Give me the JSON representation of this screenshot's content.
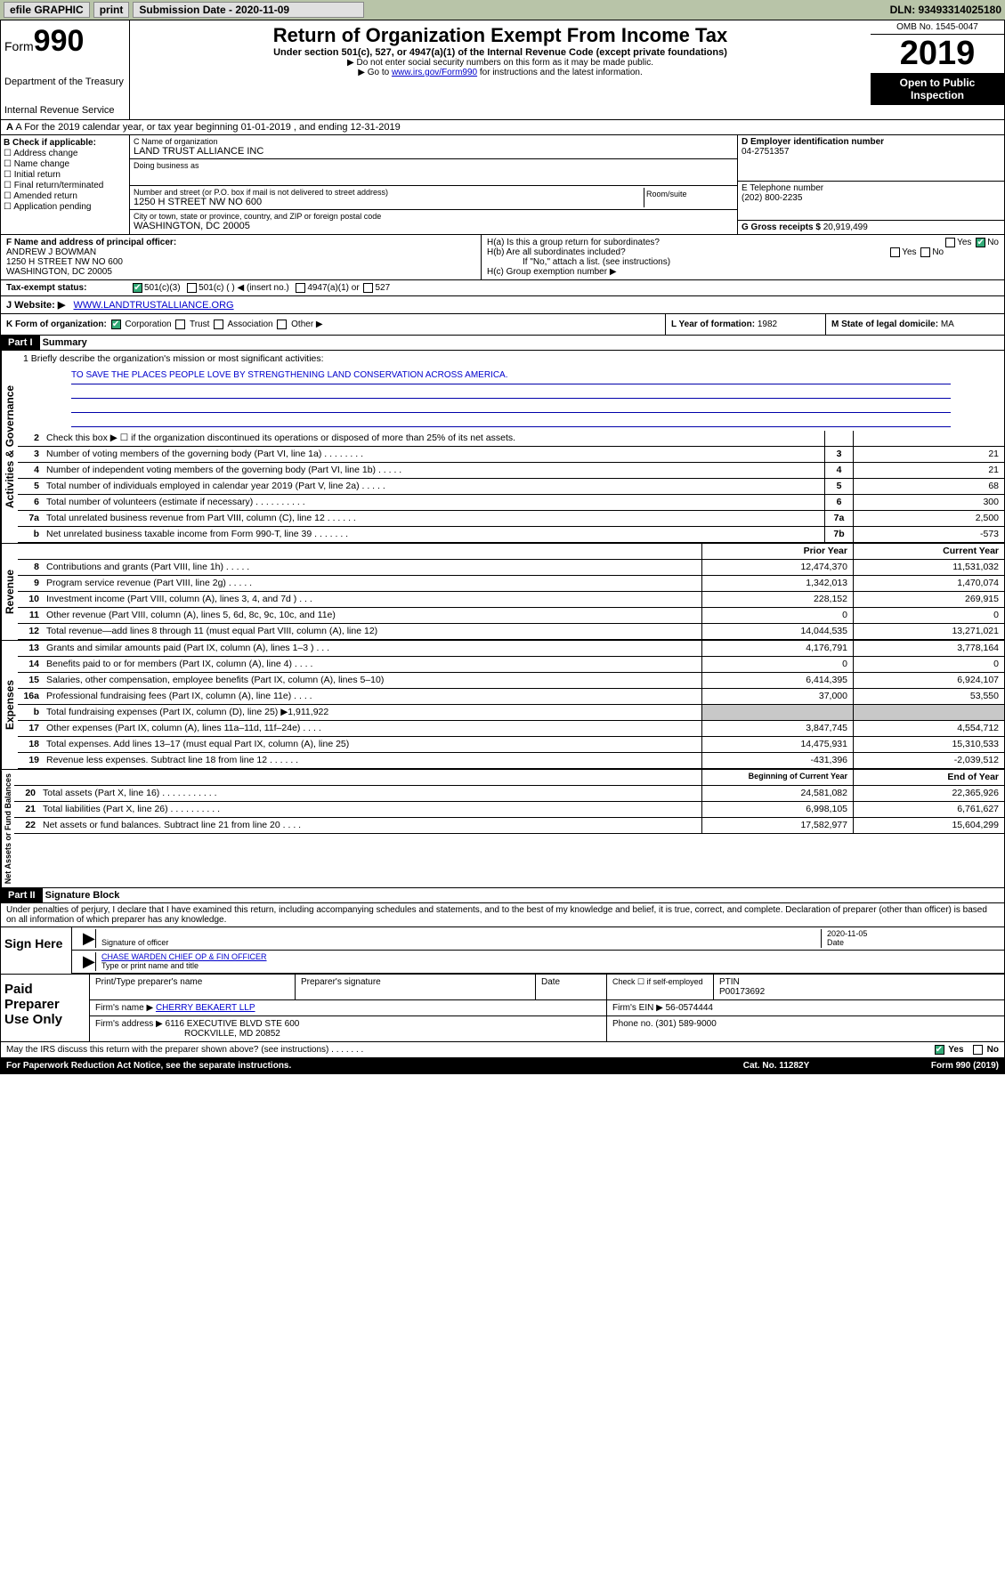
{
  "topbar": {
    "efile": "efile GRAPHIC",
    "print": "print",
    "subdate_lbl": "Submission Date - 2020-11-09",
    "dln": "DLN: 93493314025180"
  },
  "header": {
    "form": "Form",
    "num": "990",
    "dept": "Department of the Treasury",
    "irs": "Internal Revenue Service",
    "title": "Return of Organization Exempt From Income Tax",
    "sub": "Under section 501(c), 527, or 4947(a)(1) of the Internal Revenue Code (except private foundations)",
    "warn": "▶ Do not enter social security numbers on this form as it may be made public.",
    "goto": "▶ Go to www.irs.gov/Form990 for instructions and the latest information.",
    "goto_link": "www.irs.gov/Form990",
    "omb": "OMB No. 1545-0047",
    "year": "2019",
    "open": "Open to Public Inspection"
  },
  "rowa": "A For the 2019 calendar year, or tax year beginning 01-01-2019   , and ending 12-31-2019",
  "boxb": {
    "hdr": "B Check if applicable:",
    "opts": [
      "Address change",
      "Name change",
      "Initial return",
      "Final return/terminated",
      "Amended return",
      "Application pending"
    ]
  },
  "boxc": {
    "name_lbl": "C Name of organization",
    "name": "LAND TRUST ALLIANCE INC",
    "dba_lbl": "Doing business as",
    "dba": "",
    "street_lbl": "Number and street (or P.O. box if mail is not delivered to street address)",
    "room_lbl": "Room/suite",
    "street": "1250 H STREET NW NO 600",
    "city_lbl": "City or town, state or province, country, and ZIP or foreign postal code",
    "city": "WASHINGTON, DC  20005"
  },
  "boxd": {
    "lbl": "D Employer identification number",
    "val": "04-2751357"
  },
  "boxe": {
    "lbl": "E Telephone number",
    "val": "(202) 800-2235"
  },
  "boxg": {
    "lbl": "G Gross receipts $",
    "val": "20,919,499"
  },
  "boxf": {
    "lbl": "F  Name and address of principal officer:",
    "name": "ANDREW J BOWMAN",
    "addr1": "1250 H STREET NW NO 600",
    "addr2": "WASHINGTON, DC  20005"
  },
  "boxh": {
    "a": "H(a)  Is this a group return for subordinates?",
    "b": "H(b)  Are all subordinates included?",
    "bnote": "If \"No,\" attach a list. (see instructions)",
    "c": "H(c)  Group exemption number ▶"
  },
  "rowi": {
    "lbl": "Tax-exempt status:",
    "opts": [
      "501(c)(3)",
      "501(c) (  ) ◀ (insert no.)",
      "4947(a)(1) or",
      "527"
    ]
  },
  "rowj": {
    "lbl": "J   Website: ▶",
    "val": "WWW.LANDTRUSTALLIANCE.ORG"
  },
  "rowk": "K Form of organization:",
  "rowk_opts": [
    "Corporation",
    "Trust",
    "Association",
    "Other ▶"
  ],
  "rowl": {
    "lbl": "L Year of formation:",
    "val": "1982"
  },
  "rowm": {
    "lbl": "M State of legal domicile:",
    "val": "MA"
  },
  "part1": {
    "hdr": "Part I",
    "title": "Summary"
  },
  "mission": {
    "lbl": "1   Briefly describe the organization's mission or most significant activities:",
    "text": "TO SAVE THE PLACES PEOPLE LOVE BY STRENGTHENING LAND CONSERVATION ACROSS AMERICA."
  },
  "lines_gov": [
    {
      "n": "2",
      "d": "Check this box ▶ ☐ if the organization discontinued its operations or disposed of more than 25% of its net assets.",
      "box": "",
      "v": ""
    },
    {
      "n": "3",
      "d": "Number of voting members of the governing body (Part VI, line 1a)   .   .   .   .   .   .   .   .",
      "box": "3",
      "v": "21"
    },
    {
      "n": "4",
      "d": "Number of independent voting members of the governing body (Part VI, line 1b)   .   .   .   .   .",
      "box": "4",
      "v": "21"
    },
    {
      "n": "5",
      "d": "Total number of individuals employed in calendar year 2019 (Part V, line 2a)   .   .   .   .   .",
      "box": "5",
      "v": "68"
    },
    {
      "n": "6",
      "d": "Total number of volunteers (estimate if necessary)   .   .   .   .   .   .   .   .   .   .",
      "box": "6",
      "v": "300"
    },
    {
      "n": "7a",
      "d": "Total unrelated business revenue from Part VIII, column (C), line 12   .   .   .   .   .   .",
      "box": "7a",
      "v": "2,500"
    },
    {
      "n": "b",
      "d": "Net unrelated business taxable income from Form 990-T, line 39   .   .   .   .   .   .   .",
      "box": "7b",
      "v": "-573"
    }
  ],
  "col_hdrs": {
    "prior": "Prior Year",
    "current": "Current Year"
  },
  "lines_rev": [
    {
      "n": "8",
      "d": "Contributions and grants (Part VIII, line 1h)   .   .   .   .   .",
      "p": "12,474,370",
      "c": "11,531,032"
    },
    {
      "n": "9",
      "d": "Program service revenue (Part VIII, line 2g)   .   .   .   .   .",
      "p": "1,342,013",
      "c": "1,470,074"
    },
    {
      "n": "10",
      "d": "Investment income (Part VIII, column (A), lines 3, 4, and 7d )   .   .   .",
      "p": "228,152",
      "c": "269,915"
    },
    {
      "n": "11",
      "d": "Other revenue (Part VIII, column (A), lines 5, 6d, 8c, 9c, 10c, and 11e)",
      "p": "0",
      "c": "0"
    },
    {
      "n": "12",
      "d": "Total revenue—add lines 8 through 11 (must equal Part VIII, column (A), line 12)",
      "p": "14,044,535",
      "c": "13,271,021"
    }
  ],
  "lines_exp": [
    {
      "n": "13",
      "d": "Grants and similar amounts paid (Part IX, column (A), lines 1–3 )   .   .   .",
      "p": "4,176,791",
      "c": "3,778,164"
    },
    {
      "n": "14",
      "d": "Benefits paid to or for members (Part IX, column (A), line 4)   .   .   .   .",
      "p": "0",
      "c": "0"
    },
    {
      "n": "15",
      "d": "Salaries, other compensation, employee benefits (Part IX, column (A), lines 5–10)",
      "p": "6,414,395",
      "c": "6,924,107"
    },
    {
      "n": "16a",
      "d": "Professional fundraising fees (Part IX, column (A), line 11e)   .   .   .   .",
      "p": "37,000",
      "c": "53,550"
    },
    {
      "n": "b",
      "d": "Total fundraising expenses (Part IX, column (D), line 25) ▶1,911,922",
      "p": "",
      "c": "",
      "shaded": true
    },
    {
      "n": "17",
      "d": "Other expenses (Part IX, column (A), lines 11a–11d, 11f–24e)   .   .   .   .",
      "p": "3,847,745",
      "c": "4,554,712"
    },
    {
      "n": "18",
      "d": "Total expenses. Add lines 13–17 (must equal Part IX, column (A), line 25)",
      "p": "14,475,931",
      "c": "15,310,533"
    },
    {
      "n": "19",
      "d": "Revenue less expenses. Subtract line 18 from line 12   .   .   .   .   .   .",
      "p": "-431,396",
      "c": "-2,039,512"
    }
  ],
  "col_hdrs2": {
    "beg": "Beginning of Current Year",
    "end": "End of Year"
  },
  "lines_net": [
    {
      "n": "20",
      "d": "Total assets (Part X, line 16)   .   .   .   .   .   .   .   .   .   .   .",
      "p": "24,581,082",
      "c": "22,365,926"
    },
    {
      "n": "21",
      "d": "Total liabilities (Part X, line 26)   .   .   .   .   .   .   .   .   .   .",
      "p": "6,998,105",
      "c": "6,761,627"
    },
    {
      "n": "22",
      "d": "Net assets or fund balances. Subtract line 21 from line 20   .   .   .   .",
      "p": "17,582,977",
      "c": "15,604,299"
    }
  ],
  "sidelabels": {
    "gov": "Activities & Governance",
    "rev": "Revenue",
    "exp": "Expenses",
    "net": "Net Assets or Fund Balances"
  },
  "part2": {
    "hdr": "Part II",
    "title": "Signature Block"
  },
  "sig": {
    "decl": "Under penalties of perjury, I declare that I have examined this return, including accompanying schedules and statements, and to the best of my knowledge and belief, it is true, correct, and complete. Declaration of preparer (other than officer) is based on all information of which preparer has any knowledge.",
    "signhere": "Sign Here",
    "sig_lbl": "Signature of officer",
    "date": "2020-11-05",
    "date_lbl": "Date",
    "name": "CHASE WARDEN  CHIEF OP & FIN OFFICER",
    "name_lbl": "Type or print name and title"
  },
  "paid": {
    "hdr": "Paid Preparer Use Only",
    "prep_lbl": "Print/Type preparer's name",
    "prepsig_lbl": "Preparer's signature",
    "date_lbl": "Date",
    "check_lbl": "Check ☐ if self-employed",
    "ptin_lbl": "PTIN",
    "ptin": "P00173692",
    "firm_lbl": "Firm's name   ▶",
    "firm": "CHERRY BEKAERT LLP",
    "ein_lbl": "Firm's EIN ▶",
    "ein": "56-0574444",
    "addr_lbl": "Firm's address ▶",
    "addr1": "6116 EXECUTIVE BLVD STE 600",
    "addr2": "ROCKVILLE, MD  20852",
    "phone_lbl": "Phone no.",
    "phone": "(301) 589-9000"
  },
  "footer": {
    "discuss": "May the IRS discuss this return with the preparer shown above? (see instructions)   .   .   .   .   .   .   .",
    "pra": "For Paperwork Reduction Act Notice, see the separate instructions.",
    "cat": "Cat. No. 11282Y",
    "form": "Form 990 (2019)"
  }
}
